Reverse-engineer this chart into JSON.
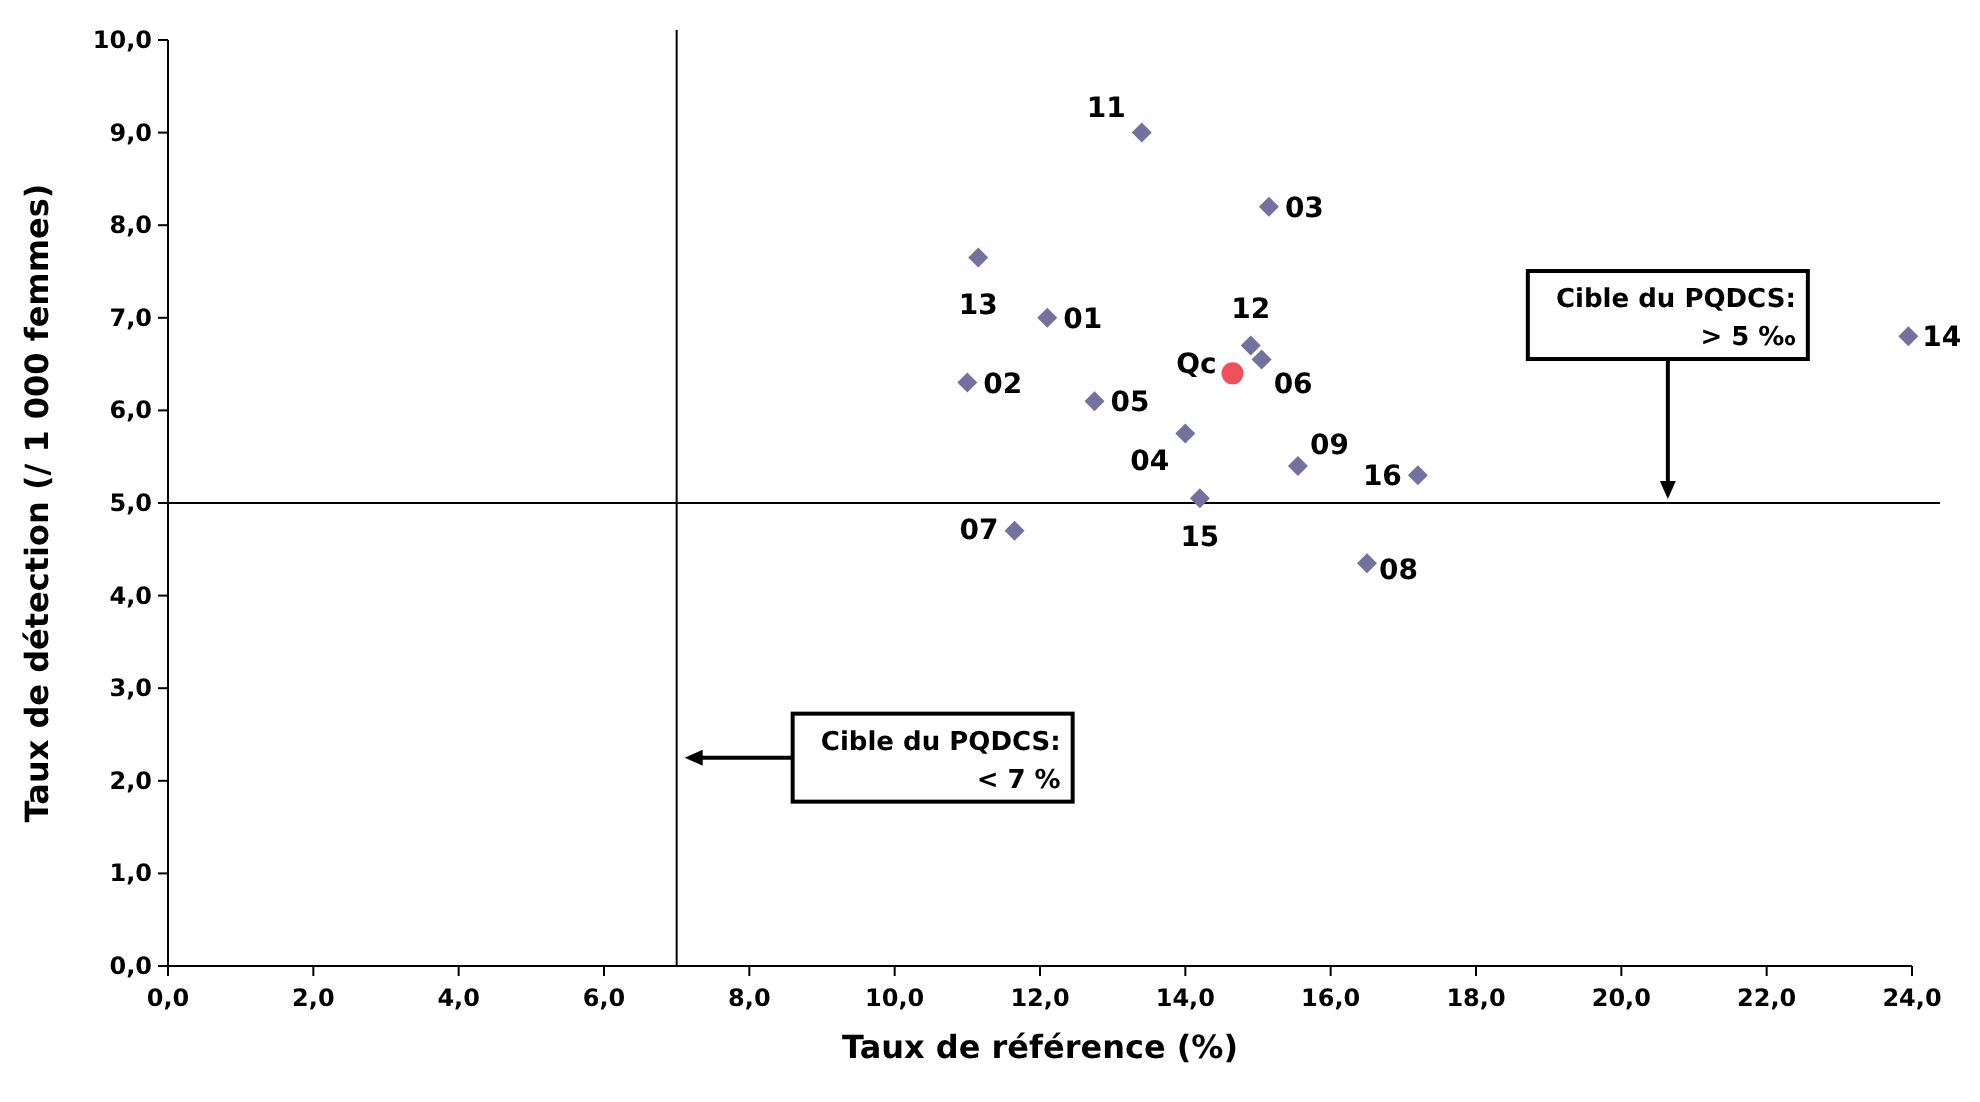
{
  "chart_data": {
    "type": "scatter",
    "xlabel": "Taux de référence (%)",
    "ylabel": "Taux de détection (/ 1 000 femmes)",
    "xlim": [
      0,
      24
    ],
    "ylim": [
      0,
      10
    ],
    "xticks": [
      {
        "value": 0,
        "label": "0,0"
      },
      {
        "value": 2,
        "label": "2,0"
      },
      {
        "value": 4,
        "label": "4,0"
      },
      {
        "value": 6,
        "label": "6,0"
      },
      {
        "value": 8,
        "label": "8,0"
      },
      {
        "value": 10,
        "label": "10,0"
      },
      {
        "value": 12,
        "label": "12,0"
      },
      {
        "value": 14,
        "label": "14,0"
      },
      {
        "value": 16,
        "label": "16,0"
      },
      {
        "value": 18,
        "label": "18,0"
      },
      {
        "value": 20,
        "label": "20,0"
      },
      {
        "value": 22,
        "label": "22,0"
      },
      {
        "value": 24,
        "label": "24,0"
      }
    ],
    "yticks": [
      {
        "value": 0,
        "label": "0,0"
      },
      {
        "value": 1,
        "label": "1,0"
      },
      {
        "value": 2,
        "label": "2,0"
      },
      {
        "value": 3,
        "label": "3,0"
      },
      {
        "value": 4,
        "label": "4,0"
      },
      {
        "value": 5,
        "label": "5,0"
      },
      {
        "value": 6,
        "label": "6,0"
      },
      {
        "value": 7,
        "label": "7,0"
      },
      {
        "value": 8,
        "label": "8,0"
      },
      {
        "value": 9,
        "label": "9,0"
      },
      {
        "value": 10,
        "label": "10,0"
      }
    ],
    "grid": false,
    "marker": "diamond",
    "ref_lines": [
      {
        "axis": "x",
        "value": 7
      },
      {
        "axis": "y",
        "value": 5
      }
    ],
    "annotations": [
      "Cible du PQDCS:\n< 7 %",
      "Cible du PQDCS:\n> 5 ‰"
    ],
    "series": [
      {
        "name": "01",
        "color": "#7371a0",
        "x": [
          12.1
        ],
        "values": [
          7.0
        ]
      },
      {
        "name": "02",
        "color": "#7371a0",
        "x": [
          11.0
        ],
        "values": [
          6.3
        ]
      },
      {
        "name": "03",
        "color": "#7371a0",
        "x": [
          15.15
        ],
        "values": [
          8.2
        ]
      },
      {
        "name": "04",
        "color": "#7371a0",
        "x": [
          14.0
        ],
        "values": [
          5.75
        ]
      },
      {
        "name": "05",
        "color": "#7371a0",
        "x": [
          12.75
        ],
        "values": [
          6.1
        ]
      },
      {
        "name": "06",
        "color": "#7371a0",
        "x": [
          15.05
        ],
        "values": [
          6.55
        ]
      },
      {
        "name": "07",
        "color": "#7371a0",
        "x": [
          11.65
        ],
        "values": [
          4.7
        ]
      },
      {
        "name": "08",
        "color": "#7371a0",
        "x": [
          16.5
        ],
        "values": [
          4.35
        ]
      },
      {
        "name": "09",
        "color": "#7371a0",
        "x": [
          15.55
        ],
        "values": [
          5.4
        ]
      },
      {
        "name": "11",
        "color": "#7371a0",
        "x": [
          13.4
        ],
        "values": [
          9.0
        ]
      },
      {
        "name": "12",
        "color": "#7371a0",
        "x": [
          14.9
        ],
        "values": [
          6.7
        ]
      },
      {
        "name": "13",
        "color": "#7371a0",
        "x": [
          11.15
        ],
        "values": [
          7.65
        ]
      },
      {
        "name": "14",
        "color": "#7371a0",
        "x": [
          23.95
        ],
        "values": [
          6.8
        ]
      },
      {
        "name": "15",
        "color": "#7371a0",
        "x": [
          14.2
        ],
        "values": [
          5.05
        ]
      },
      {
        "name": "16",
        "color": "#7371a0",
        "x": [
          17.2
        ],
        "values": [
          5.3
        ]
      },
      {
        "name": "Qc",
        "color": "#f0505a",
        "marker": "circle",
        "x": [
          14.65
        ],
        "values": [
          6.4
        ]
      }
    ]
  }
}
